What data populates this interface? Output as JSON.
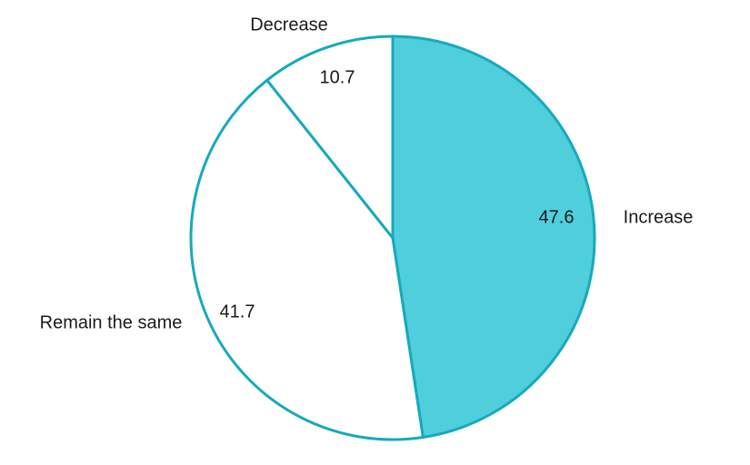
{
  "chart_data": {
    "type": "pie",
    "title": "",
    "slices": [
      {
        "label": "Increase",
        "value": 47.6,
        "value_label": "47.6",
        "color": "#4ecfdb"
      },
      {
        "label": "Remain the same",
        "value": 41.7,
        "value_label": "41.7",
        "color": "#ffffff"
      },
      {
        "label": "Decrease",
        "value": 10.7,
        "value_label": "10.7",
        "color": "#ffffff"
      }
    ],
    "start": "12 o'clock",
    "direction": "clockwise",
    "border_color": "#17a9bd",
    "legend": "none (labels outside slices)"
  }
}
